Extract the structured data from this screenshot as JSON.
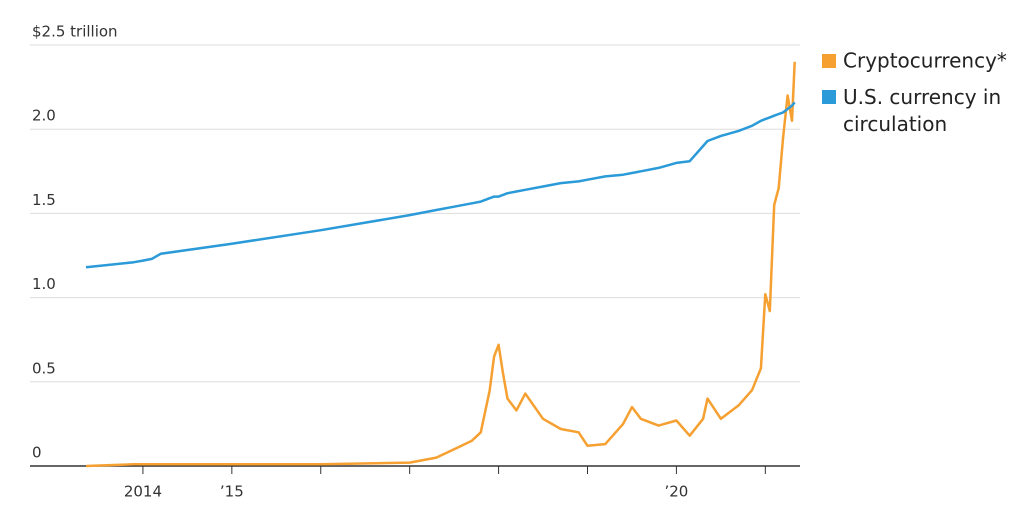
{
  "chart_data": {
    "type": "line",
    "x": [
      2013.36,
      2013.9,
      2014.0,
      2014.1,
      2014.2,
      2015.0,
      2016.0,
      2017.0,
      2017.3,
      2017.5,
      2017.7,
      2017.8,
      2017.9,
      2017.95,
      2018.0,
      2018.05,
      2018.1,
      2018.2,
      2018.3,
      2018.5,
      2018.7,
      2018.9,
      2019.0,
      2019.2,
      2019.4,
      2019.5,
      2019.6,
      2019.8,
      2020.0,
      2020.15,
      2020.3,
      2020.35,
      2020.5,
      2020.7,
      2020.85,
      2020.95,
      2021.0,
      2021.05,
      2021.1,
      2021.15,
      2021.2,
      2021.25,
      2021.3,
      2021.33
    ],
    "series": [
      {
        "name": "Cryptocurrency*",
        "color": "#f5a031",
        "values": [
          0.0,
          0.01,
          0.01,
          0.01,
          0.01,
          0.01,
          0.01,
          0.02,
          0.05,
          0.1,
          0.15,
          0.2,
          0.45,
          0.65,
          0.72,
          0.55,
          0.4,
          0.33,
          0.43,
          0.28,
          0.22,
          0.2,
          0.12,
          0.13,
          0.25,
          0.35,
          0.28,
          0.24,
          0.27,
          0.18,
          0.28,
          0.4,
          0.28,
          0.36,
          0.45,
          0.58,
          1.02,
          0.92,
          1.55,
          1.65,
          1.95,
          2.2,
          2.05,
          2.4
        ]
      },
      {
        "name": "U.S. currency in circulation",
        "color": "#2a9ad8",
        "values": [
          1.18,
          1.21,
          1.22,
          1.23,
          1.26,
          1.32,
          1.4,
          1.49,
          1.52,
          1.54,
          1.56,
          1.57,
          1.59,
          1.6,
          1.6,
          1.61,
          1.62,
          1.63,
          1.64,
          1.66,
          1.68,
          1.69,
          1.7,
          1.72,
          1.73,
          1.74,
          1.75,
          1.77,
          1.8,
          1.81,
          1.9,
          1.93,
          1.96,
          1.99,
          2.02,
          2.05,
          2.06,
          2.07,
          2.08,
          2.09,
          2.1,
          2.12,
          2.14,
          2.16
        ]
      }
    ],
    "xlim": [
      2012.73,
      2021.39
    ],
    "xticks": [
      {
        "value": 2014,
        "label": "2014"
      },
      {
        "value": 2015,
        "label": "’15"
      },
      {
        "value": 2016,
        "label": null
      },
      {
        "value": 2017,
        "label": null
      },
      {
        "value": 2018,
        "label": null
      },
      {
        "value": 2019,
        "label": null
      },
      {
        "value": 2020,
        "label": "’20"
      },
      {
        "value": 2021,
        "label": null
      }
    ],
    "ylim": [
      0,
      2.5
    ],
    "yticks": [
      0,
      {
        "value": 0.5,
        "label": "0.5"
      },
      {
        "value": 1.0,
        "label": "1.0"
      },
      {
        "value": 1.5,
        "label": "1.5"
      },
      {
        "value": 2.0,
        "label": "2.0"
      },
      {
        "value": 2.5,
        "label": "$2.5 trillion"
      }
    ],
    "grid": true
  }
}
